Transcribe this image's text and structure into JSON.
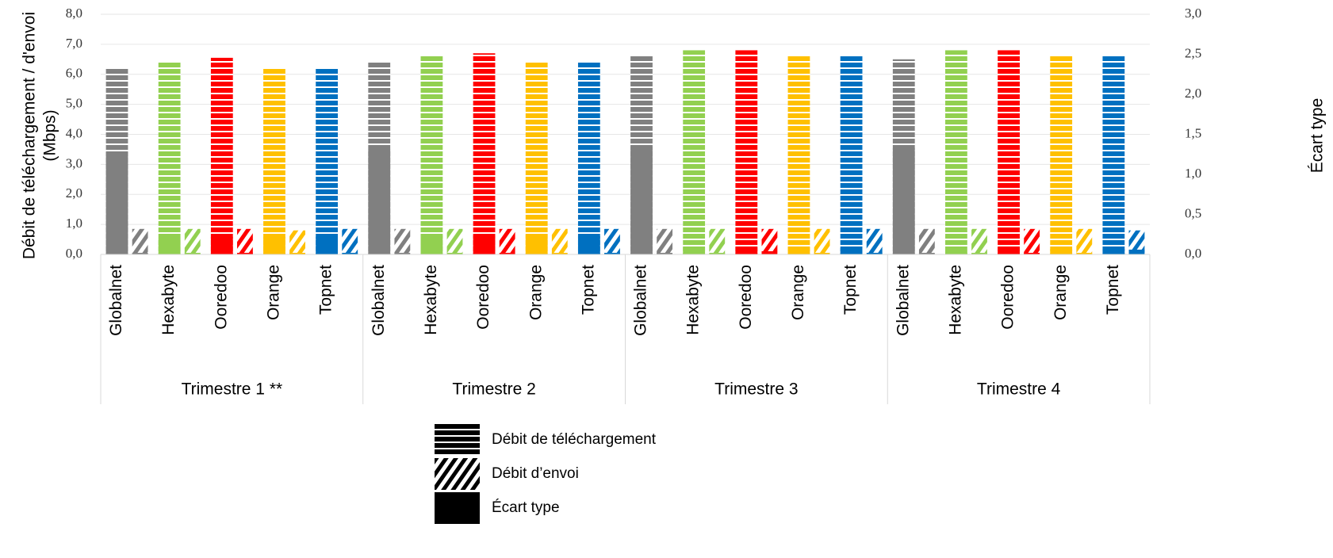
{
  "chart_data": {
    "type": "bar",
    "ylabel": [
      "Débit de téléchargement / d'envoi",
      "(Mbps)"
    ],
    "y2label": "Écart type",
    "groups": [
      {
        "name": "Trimestre 1 **",
        "categories": [
          "Globalnet",
          "Hexabyte",
          "Ooredoo",
          "Orange",
          "Topnet"
        ]
      },
      {
        "name": "Trimestre 2",
        "categories": [
          "Globalnet",
          "Hexabyte",
          "Ooredoo",
          "Orange",
          "Topnet"
        ]
      },
      {
        "name": "Trimestre 3",
        "categories": [
          "Globalnet",
          "Hexabyte",
          "Ooredoo",
          "Orange",
          "Topnet"
        ]
      },
      {
        "name": "Trimestre 4",
        "categories": [
          "Globalnet",
          "Hexabyte",
          "Ooredoo",
          "Orange",
          "Topnet"
        ]
      }
    ],
    "colors": [
      "#808080",
      "#92d050",
      "#ff0000",
      "#ffc000",
      "#0070c0"
    ],
    "series": [
      {
        "name": "Débit de téléchargement",
        "pattern": "horizontal",
        "slot": "download",
        "values": [
          6.2,
          6.4,
          6.55,
          6.2,
          6.2,
          6.4,
          6.6,
          6.7,
          6.4,
          6.4,
          6.6,
          6.8,
          6.8,
          6.6,
          6.6,
          6.5,
          6.8,
          6.8,
          6.6,
          6.6
        ]
      },
      {
        "name": "Débit d’envoi",
        "pattern": "diagonal",
        "slot": "upload",
        "values": [
          0.85,
          0.85,
          0.85,
          0.8,
          0.85,
          0.85,
          0.85,
          0.85,
          0.85,
          0.85,
          0.85,
          0.85,
          0.85,
          0.85,
          0.85,
          0.85,
          0.85,
          0.85,
          0.85,
          0.8
        ]
      },
      {
        "name": "Écart type",
        "pattern": "solid",
        "slot": "download",
        "axis": "y2",
        "values": [
          1.28,
          0.2,
          0.22,
          0.22,
          0.22,
          1.31,
          0.24,
          0.24,
          0.25,
          0.23,
          1.35,
          0.09,
          0.09,
          0.09,
          0.08,
          1.33,
          0.04,
          0.09,
          0.07,
          0.07
        ]
      },
      {
        "pattern": "solid",
        "slot": "upload",
        "axis": "y2",
        "values": [
          0.02,
          0.02,
          0.02,
          0.02,
          0.02,
          0.02,
          0.02,
          0.02,
          0.02,
          0.02,
          0.02,
          0.02,
          0.04,
          0.02,
          0.02,
          0.02,
          0.02,
          0.02,
          0.02,
          0.06
        ]
      }
    ],
    "ylim": [
      0,
      8
    ],
    "yticks": [
      {
        "value": 0,
        "label": "0,0"
      },
      {
        "value": 1,
        "label": "1,0"
      },
      {
        "value": 2,
        "label": "2,0"
      },
      {
        "value": 3,
        "label": "3,0"
      },
      {
        "value": 4,
        "label": "4,0"
      },
      {
        "value": 5,
        "label": "5,0"
      },
      {
        "value": 6,
        "label": "6,0"
      },
      {
        "value": 7,
        "label": "7,0"
      },
      {
        "value": 8,
        "label": "8,0"
      }
    ],
    "y2lim": [
      0,
      3
    ],
    "y2ticks": [
      {
        "value": 0,
        "label": "0,0"
      },
      {
        "value": 0.5,
        "label": "0,5"
      },
      {
        "value": 1,
        "label": "1,0"
      },
      {
        "value": 1.5,
        "label": "1,5"
      },
      {
        "value": 2,
        "label": "2,0"
      },
      {
        "value": 2.5,
        "label": "2,5"
      },
      {
        "value": 3,
        "label": "3,0"
      }
    ],
    "grid": true
  }
}
